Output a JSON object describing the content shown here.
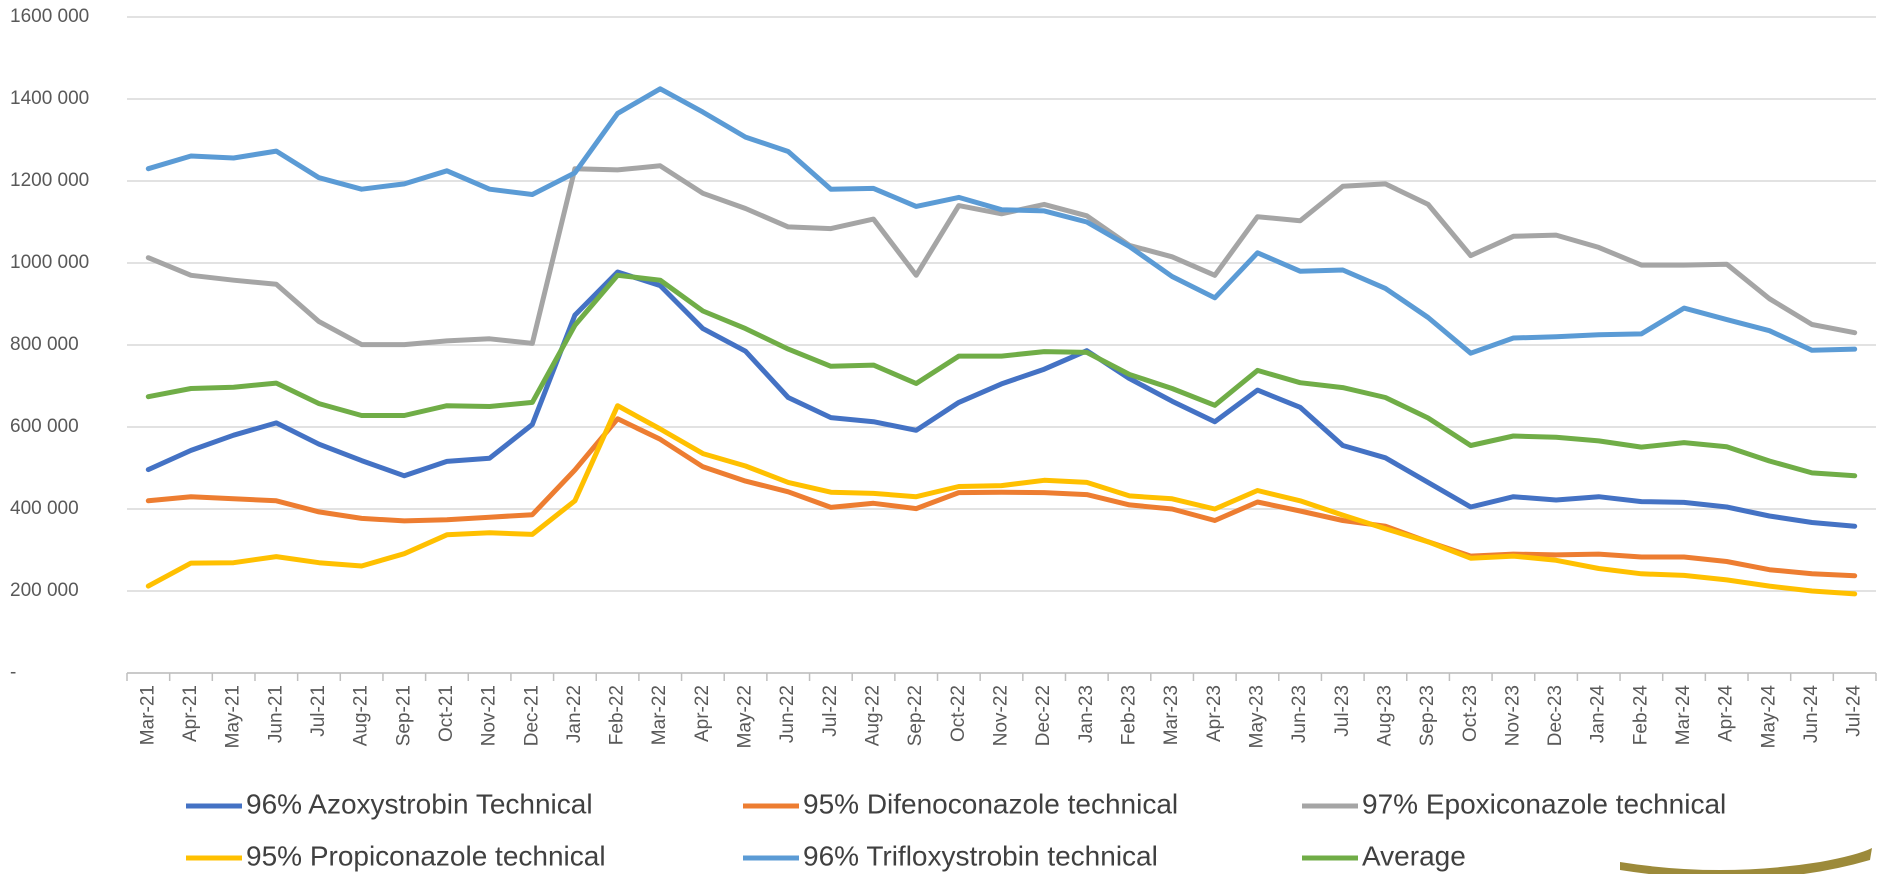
{
  "chart_data": {
    "type": "line",
    "categories": [
      "Mar-21",
      "Apr-21",
      "May-21",
      "Jun-21",
      "Jul-21",
      "Aug-21",
      "Sep-21",
      "Oct-21",
      "Nov-21",
      "Dec-21",
      "Jan-22",
      "Feb-22",
      "Mar-22",
      "Apr-22",
      "May-22",
      "Jun-22",
      "Jul-22",
      "Aug-22",
      "Sep-22",
      "Oct-22",
      "Nov-22",
      "Dec-22",
      "Jan-23",
      "Feb-23",
      "Mar-23",
      "Apr-23",
      "May-23",
      "Jun-23",
      "Jul-23",
      "Aug-23",
      "Sep-23",
      "Oct-23",
      "Nov-23",
      "Dec-23",
      "Jan-24",
      "Feb-24",
      "Mar-24",
      "Apr-24",
      "May-24",
      "Jun-24",
      "Jul-24"
    ],
    "series": [
      {
        "name": "96% Azoxystrobin Technical",
        "color": "#4472c4",
        "values": [
          496000,
          543000,
          580000,
          610000,
          558000,
          518000,
          481000,
          516000,
          524000,
          606000,
          873000,
          978000,
          945000,
          840000,
          785000,
          672000,
          623000,
          613000,
          592000,
          660000,
          705000,
          741000,
          786000,
          718000,
          663000,
          613000,
          690000,
          648000,
          555000,
          525000,
          465000,
          405000,
          430000,
          422000,
          430000,
          418000,
          416000,
          405000,
          383000,
          367000,
          358000
        ]
      },
      {
        "name": "95% Difenoconazole technical",
        "color": "#ed7d31",
        "values": [
          420000,
          430000,
          425000,
          420000,
          393000,
          377000,
          371000,
          374000,
          380000,
          386000,
          495000,
          620000,
          570000,
          503000,
          468000,
          442000,
          404000,
          414000,
          401000,
          440000,
          441000,
          440000,
          435000,
          410000,
          400000,
          372000,
          417000,
          395000,
          372000,
          358000,
          320000,
          285000,
          290000,
          288000,
          290000,
          283000,
          283000,
          272000,
          252000,
          242000,
          237000
        ]
      },
      {
        "name": "97% Epoxiconazole technical",
        "color": "#a5a5a5",
        "values": [
          1013000,
          970000,
          958000,
          948000,
          857000,
          801000,
          801000,
          810000,
          815000,
          804000,
          1230000,
          1227000,
          1237000,
          1170000,
          1133000,
          1088000,
          1084000,
          1107000,
          970000,
          1140000,
          1120000,
          1143000,
          1115000,
          1043000,
          1015000,
          970000,
          1113000,
          1103000,
          1187000,
          1193000,
          1143000,
          1018000,
          1065000,
          1068000,
          1038000,
          995000,
          995000,
          997000,
          913000,
          850000,
          830000
        ]
      },
      {
        "name": "95% Propiconazole technical",
        "color": "#ffc000",
        "values": [
          212000,
          268000,
          269000,
          284000,
          269000,
          261000,
          291000,
          337000,
          342000,
          338000,
          420000,
          652000,
          595000,
          535000,
          505000,
          465000,
          441000,
          438000,
          430000,
          455000,
          457000,
          470000,
          465000,
          432000,
          425000,
          400000,
          445000,
          420000,
          385000,
          352000,
          320000,
          280000,
          285000,
          275000,
          255000,
          242000,
          238000,
          227000,
          212000,
          200000,
          193000
        ]
      },
      {
        "name": "96% Trifloxystrobin technical",
        "color": "#5b9bd5",
        "values": [
          1230000,
          1261000,
          1256000,
          1273000,
          1208000,
          1180000,
          1193000,
          1225000,
          1180000,
          1167000,
          1220000,
          1365000,
          1425000,
          1368000,
          1307000,
          1272000,
          1180000,
          1182000,
          1138000,
          1160000,
          1130000,
          1127000,
          1100000,
          1040000,
          967000,
          915000,
          1025000,
          980000,
          983000,
          938000,
          867000,
          780000,
          817000,
          820000,
          825000,
          827000,
          890000,
          862000,
          835000,
          787000,
          790000
        ]
      },
      {
        "name": "Average",
        "color": "#70ad47",
        "values": [
          674000,
          694000,
          697000,
          707000,
          657000,
          628000,
          628000,
          652000,
          650000,
          660000,
          848000,
          970000,
          958000,
          883000,
          840000,
          790000,
          748000,
          751000,
          706000,
          773000,
          773000,
          784000,
          782000,
          728000,
          694000,
          653000,
          738000,
          708000,
          696000,
          672000,
          622000,
          555000,
          578000,
          575000,
          566000,
          551000,
          562000,
          552000,
          517000,
          488000,
          481000
        ]
      }
    ],
    "ylim": [
      0,
      1600000
    ],
    "yticks": [
      {
        "value": 0,
        "label": "-"
      },
      {
        "value": 200000,
        "label": "200 000"
      },
      {
        "value": 400000,
        "label": "400 000"
      },
      {
        "value": 600000,
        "label": "600 000"
      },
      {
        "value": 800000,
        "label": "800 000"
      },
      {
        "value": 1000000,
        "label": "1000 000"
      },
      {
        "value": 1200000,
        "label": "1200 000"
      },
      {
        "value": 1400000,
        "label": "1400 000"
      },
      {
        "value": 1600000,
        "label": "1600 000"
      }
    ],
    "grid": true
  }
}
